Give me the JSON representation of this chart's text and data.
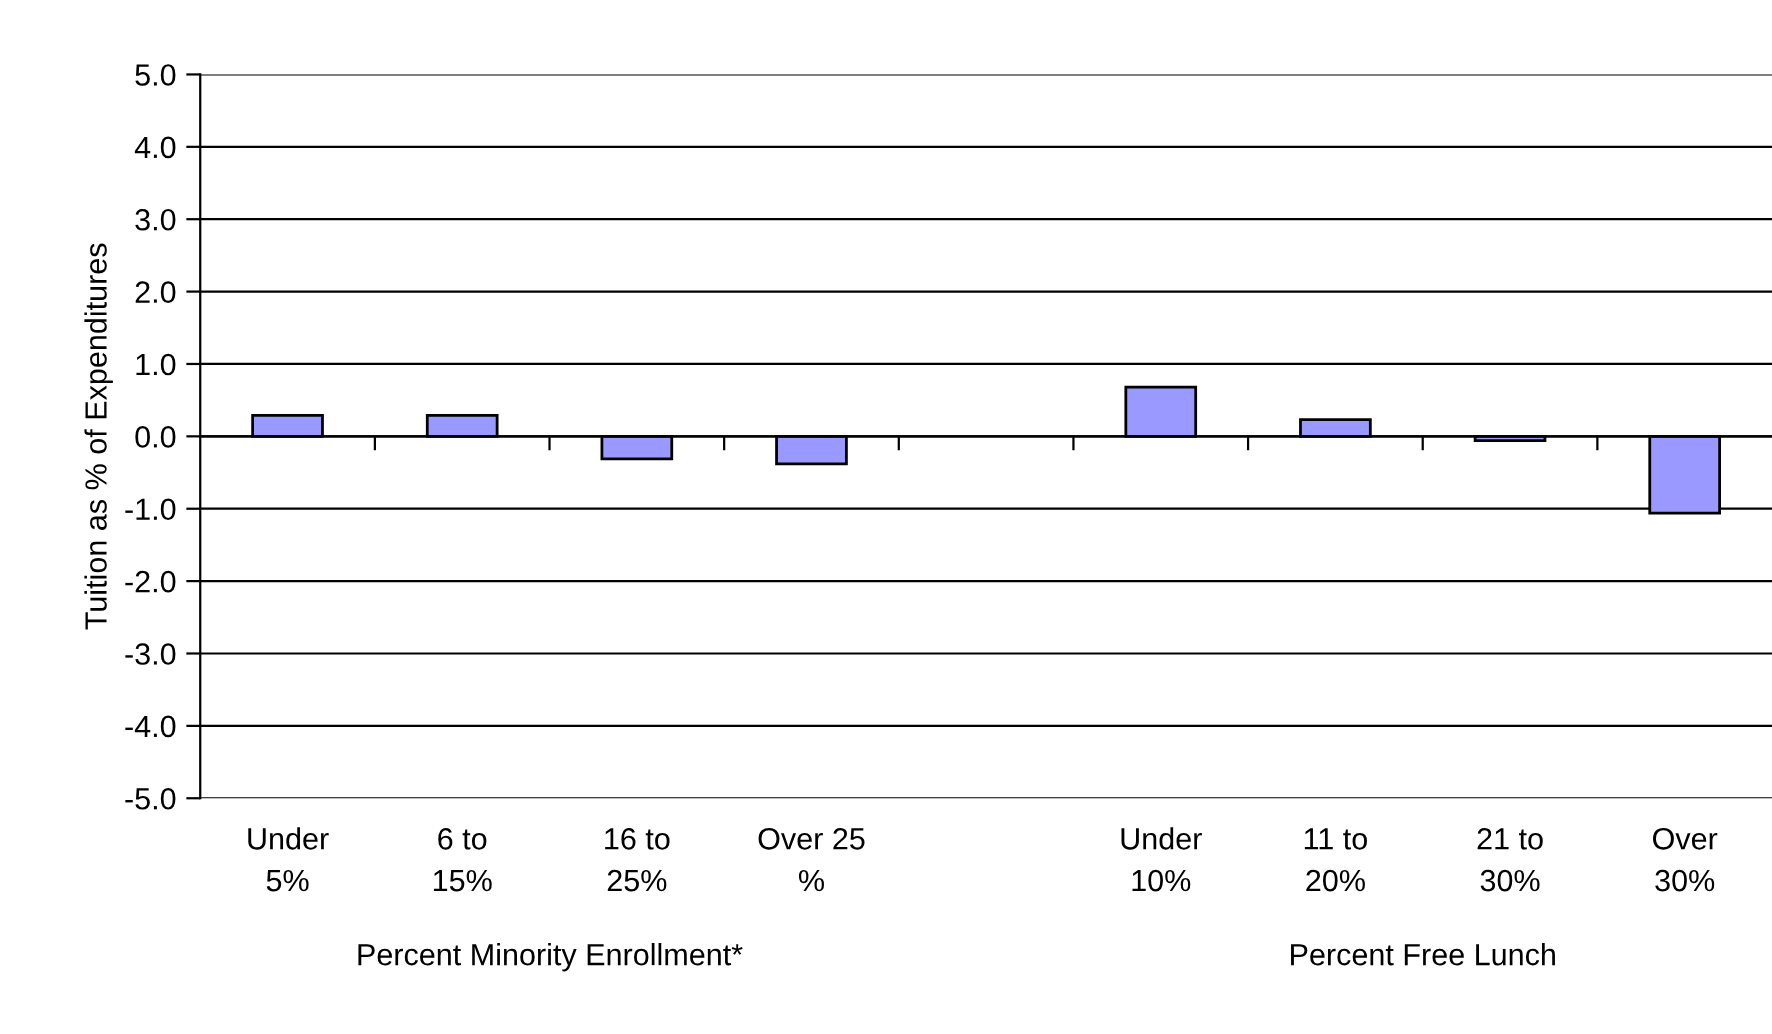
{
  "chart_data": {
    "type": "bar",
    "ylabel": "Tuition as % of Expenditures",
    "categories": [
      "Under\n5%",
      "6 to\n15%",
      "16 to\n25%",
      "Over 25\n%",
      null,
      "Under\n10%",
      "11 to\n20%",
      "21 to\n30%",
      "Over\n30%"
    ],
    "values": [
      0.29,
      0.29,
      -0.31,
      -0.38,
      null,
      0.68,
      0.23,
      -0.06,
      -1.06
    ],
    "color": "#9999ff",
    "ylim": [
      -5,
      5
    ],
    "yticks": [
      {
        "value": -5,
        "label": "-5.0"
      },
      {
        "value": -4,
        "label": "-4.0"
      },
      {
        "value": -3,
        "label": "-3.0"
      },
      {
        "value": -2,
        "label": "-2.0"
      },
      {
        "value": -1,
        "label": "-1.0"
      },
      {
        "value": 0,
        "label": "0.0"
      },
      {
        "value": 1,
        "label": "1.0"
      },
      {
        "value": 2,
        "label": "2.0"
      },
      {
        "value": 3,
        "label": "3.0"
      },
      {
        "value": 4,
        "label": "4.0"
      },
      {
        "value": 5,
        "label": "5.0"
      }
    ],
    "grid": "y",
    "annotations": [
      "Percent Minority Enrollment*",
      "Percent Free Lunch"
    ]
  }
}
